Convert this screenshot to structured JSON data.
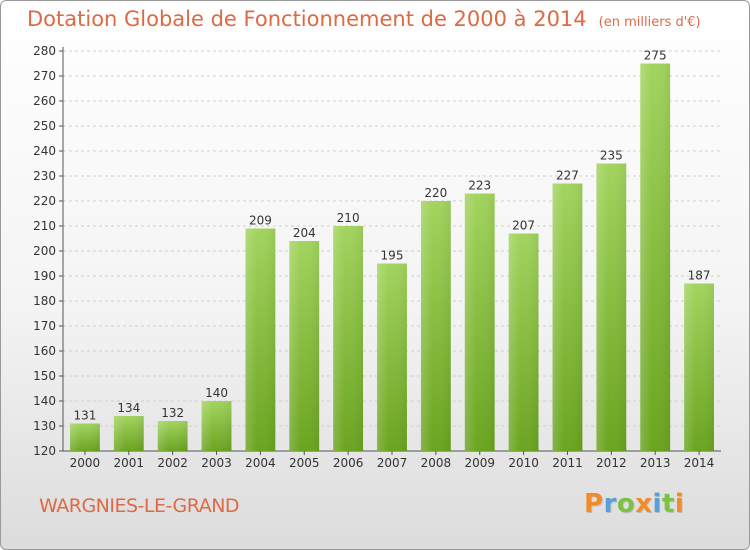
{
  "title": "Dotation Globale de Fonctionnement de 2000 à 2014",
  "unit": "(en milliers d'€)",
  "commune": "WARGNIES-LE-GRAND",
  "brand": {
    "letters": [
      "P",
      "r",
      "o",
      "x",
      "i",
      "t",
      "i"
    ],
    "colors": [
      "#f28c28",
      "#5aa0d8",
      "#7cc243",
      "#f28c28",
      "#5aa0d8",
      "#7cc243",
      "#f28c28"
    ]
  },
  "colors": {
    "bar_light": "#a2d45e",
    "bar_dark": "#6aa41f",
    "title": "#dd6a45"
  },
  "chart_data": {
    "type": "bar",
    "title": "Dotation Globale de Fonctionnement de 2000 à 2014",
    "subtitle": "(en milliers d'€)",
    "xlabel": "",
    "ylabel": "",
    "categories": [
      "2000",
      "2001",
      "2002",
      "2003",
      "2004",
      "2005",
      "2006",
      "2007",
      "2008",
      "2009",
      "2010",
      "2011",
      "2012",
      "2013",
      "2014"
    ],
    "values": [
      131,
      134,
      132,
      140,
      209,
      204,
      210,
      195,
      220,
      223,
      207,
      227,
      235,
      275,
      187
    ],
    "ylim": [
      120,
      280
    ],
    "ytick_step": 10,
    "grid": true
  }
}
